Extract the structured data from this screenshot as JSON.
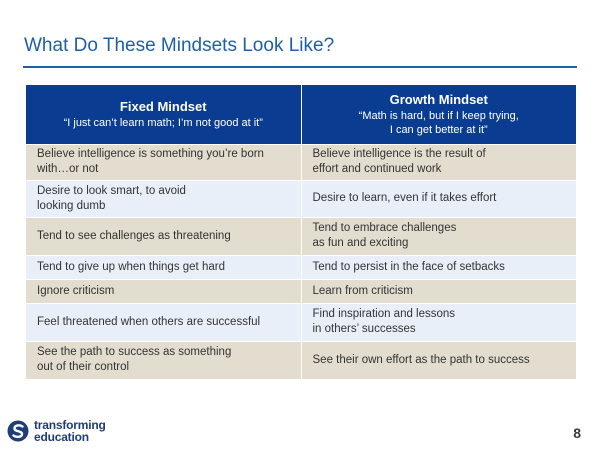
{
  "slide": {
    "title": "What Do These Mindsets Look Like?",
    "page_number": "8"
  },
  "table": {
    "headers": [
      {
        "title": "Fixed Mindset",
        "quote": "“I just can’t learn math; I’m not good at it”"
      },
      {
        "title": "Growth Mindset",
        "quote": "“Math is hard, but if I keep trying,\nI can get better at it”"
      }
    ],
    "rows": [
      {
        "fixed": "Believe intelligence is something you’re born with…or not",
        "growth": "Believe intelligence is the result of\neffort and continued work"
      },
      {
        "fixed": "Desire to look smart, to avoid\nlooking dumb",
        "growth": "Desire to learn, even if it takes effort"
      },
      {
        "fixed": "Tend to see challenges as threatening",
        "growth": "Tend to embrace challenges\nas fun and exciting"
      },
      {
        "fixed": "Tend to give up when things get hard",
        "growth": "Tend to persist in the face of setbacks"
      },
      {
        "fixed": "Ignore criticism",
        "growth": "Learn from criticism"
      },
      {
        "fixed": "Feel threatened when others are successful",
        "growth": "Find inspiration and lessons\nin others’ successes"
      },
      {
        "fixed": "See the path to success as something\nout of their control",
        "growth": "See their own effort as the path to success"
      }
    ]
  },
  "logo": {
    "line1": "transforming",
    "line2": "education",
    "icon": "transforming-education-s-logo-icon",
    "colors": {
      "dark": "#1f3e78",
      "light": "#4a8fd6"
    }
  },
  "colors": {
    "title": "#1f5fa8",
    "header_bg": "#0a3d91",
    "row_tan": "#e3ddd0",
    "row_blue": "#e9eff8"
  }
}
